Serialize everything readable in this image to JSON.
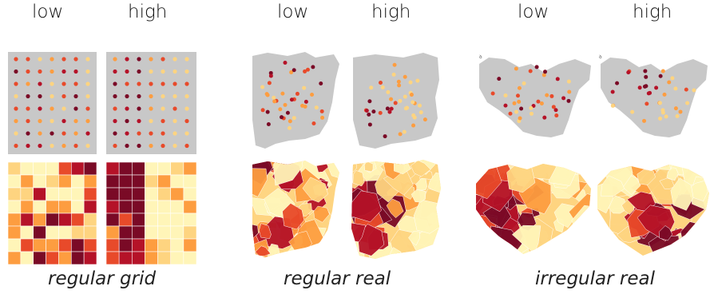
{
  "panels": [
    {
      "low_label": "low",
      "high_label": "high",
      "caption": "regular grid"
    },
    {
      "low_label": "low",
      "high_label": "high",
      "caption": "regular real"
    },
    {
      "low_label": "low",
      "high_label": "high",
      "caption": "irregular real"
    }
  ],
  "colors": {
    "base_gray": "#c8c8c8",
    "c1": "#fff5b8",
    "c2": "#fed480",
    "c3": "#fd9d40",
    "c4": "#e84a2a",
    "c5": "#b51228",
    "c6": "#7a0a26"
  }
}
